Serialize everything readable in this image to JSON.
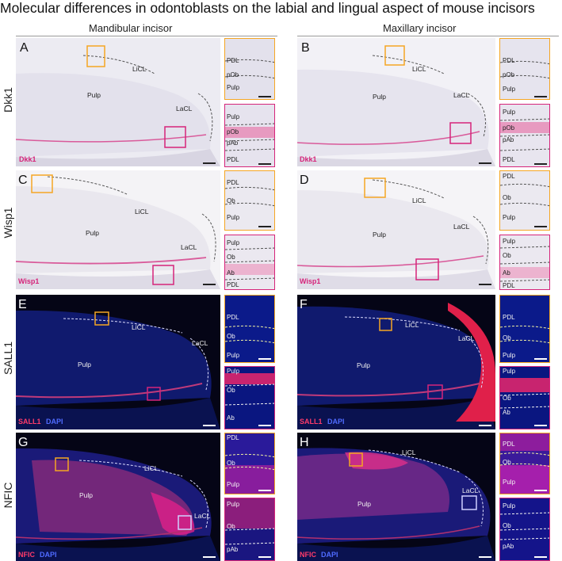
{
  "figure": {
    "title": "Molecular differences in odontoblasts on the labial and lingual aspect of mouse incisors",
    "columns": [
      "Mandibular incisor",
      "Maxillary incisor"
    ],
    "rows": [
      "Dkk1",
      "Wisp1",
      "SALL1",
      "NFIC"
    ]
  },
  "panels": {
    "A": {
      "letter": "A",
      "stain": "Dkk1",
      "labels": [
        "LiCL",
        "Pulp",
        "LaCL"
      ],
      "inset_top": [
        "PDL",
        "pOb",
        "Pulp"
      ],
      "inset_bottom": [
        "Pulp",
        "pOb",
        "pAb",
        "PDL"
      ]
    },
    "B": {
      "letter": "B",
      "stain": "Dkk1",
      "labels": [
        "LiCL",
        "Pulp",
        "LaCL"
      ],
      "inset_top": [
        "PDL",
        "pOb",
        "Pulp"
      ],
      "inset_bottom": [
        "Pulp",
        "pOb",
        "pAb",
        "PDL"
      ]
    },
    "C": {
      "letter": "C",
      "stain": "Wisp1",
      "labels": [
        "LiCL",
        "Pulp",
        "LaCL"
      ],
      "inset_top": [
        "PDL",
        "Ob",
        "Pulp"
      ],
      "inset_bottom": [
        "Pulp",
        "Ob",
        "Ab",
        "PDL"
      ]
    },
    "D": {
      "letter": "D",
      "stain": "Wisp1",
      "labels": [
        "LiCL",
        "Pulp",
        "LaCL"
      ],
      "inset_top": [
        "PDL",
        "Ob",
        "Pulp"
      ],
      "inset_bottom": [
        "Pulp",
        "Ob",
        "Ab",
        "PDL"
      ]
    },
    "E": {
      "letter": "E",
      "stain_a": "SALL1",
      "stain_b": "DAPI",
      "labels": [
        "LiCL",
        "LaCL",
        "Pulp"
      ],
      "inset_top": [
        "PDL",
        "Ob",
        "Pulp"
      ],
      "inset_bottom": [
        "Pulp",
        "Ob",
        "Ab"
      ]
    },
    "F": {
      "letter": "F",
      "stain_a": "SALL1",
      "stain_b": "DAPI",
      "labels": [
        "LiCL",
        "LaCL",
        "Pulp"
      ],
      "inset_top": [
        "PDL",
        "Ob",
        "Pulp"
      ],
      "inset_bottom": [
        "Pulp",
        "Ob",
        "Ab"
      ]
    },
    "G": {
      "letter": "G",
      "stain_a": "NFIC",
      "stain_b": "DAPI",
      "labels": [
        "LiCL",
        "Pulp",
        "LaCL"
      ],
      "inset_top": [
        "PDL",
        "Ob",
        "Pulp"
      ],
      "inset_bottom": [
        "Pulp",
        "Ob",
        "pAb"
      ]
    },
    "H": {
      "letter": "H",
      "stain_a": "NFIC",
      "stain_b": "DAPI",
      "labels": [
        "LiCL",
        "LaCL",
        "Pulp"
      ],
      "inset_top": [
        "PDL",
        "Ob",
        "Pulp"
      ],
      "inset_bottom": [
        "Pulp",
        "Ob",
        "pAb"
      ]
    }
  },
  "colors": {
    "box_top": "#f5a623",
    "box_bottom": "#d6247a",
    "stain_pink": "#d6247a",
    "dapi_blue": "#3b5bff"
  }
}
